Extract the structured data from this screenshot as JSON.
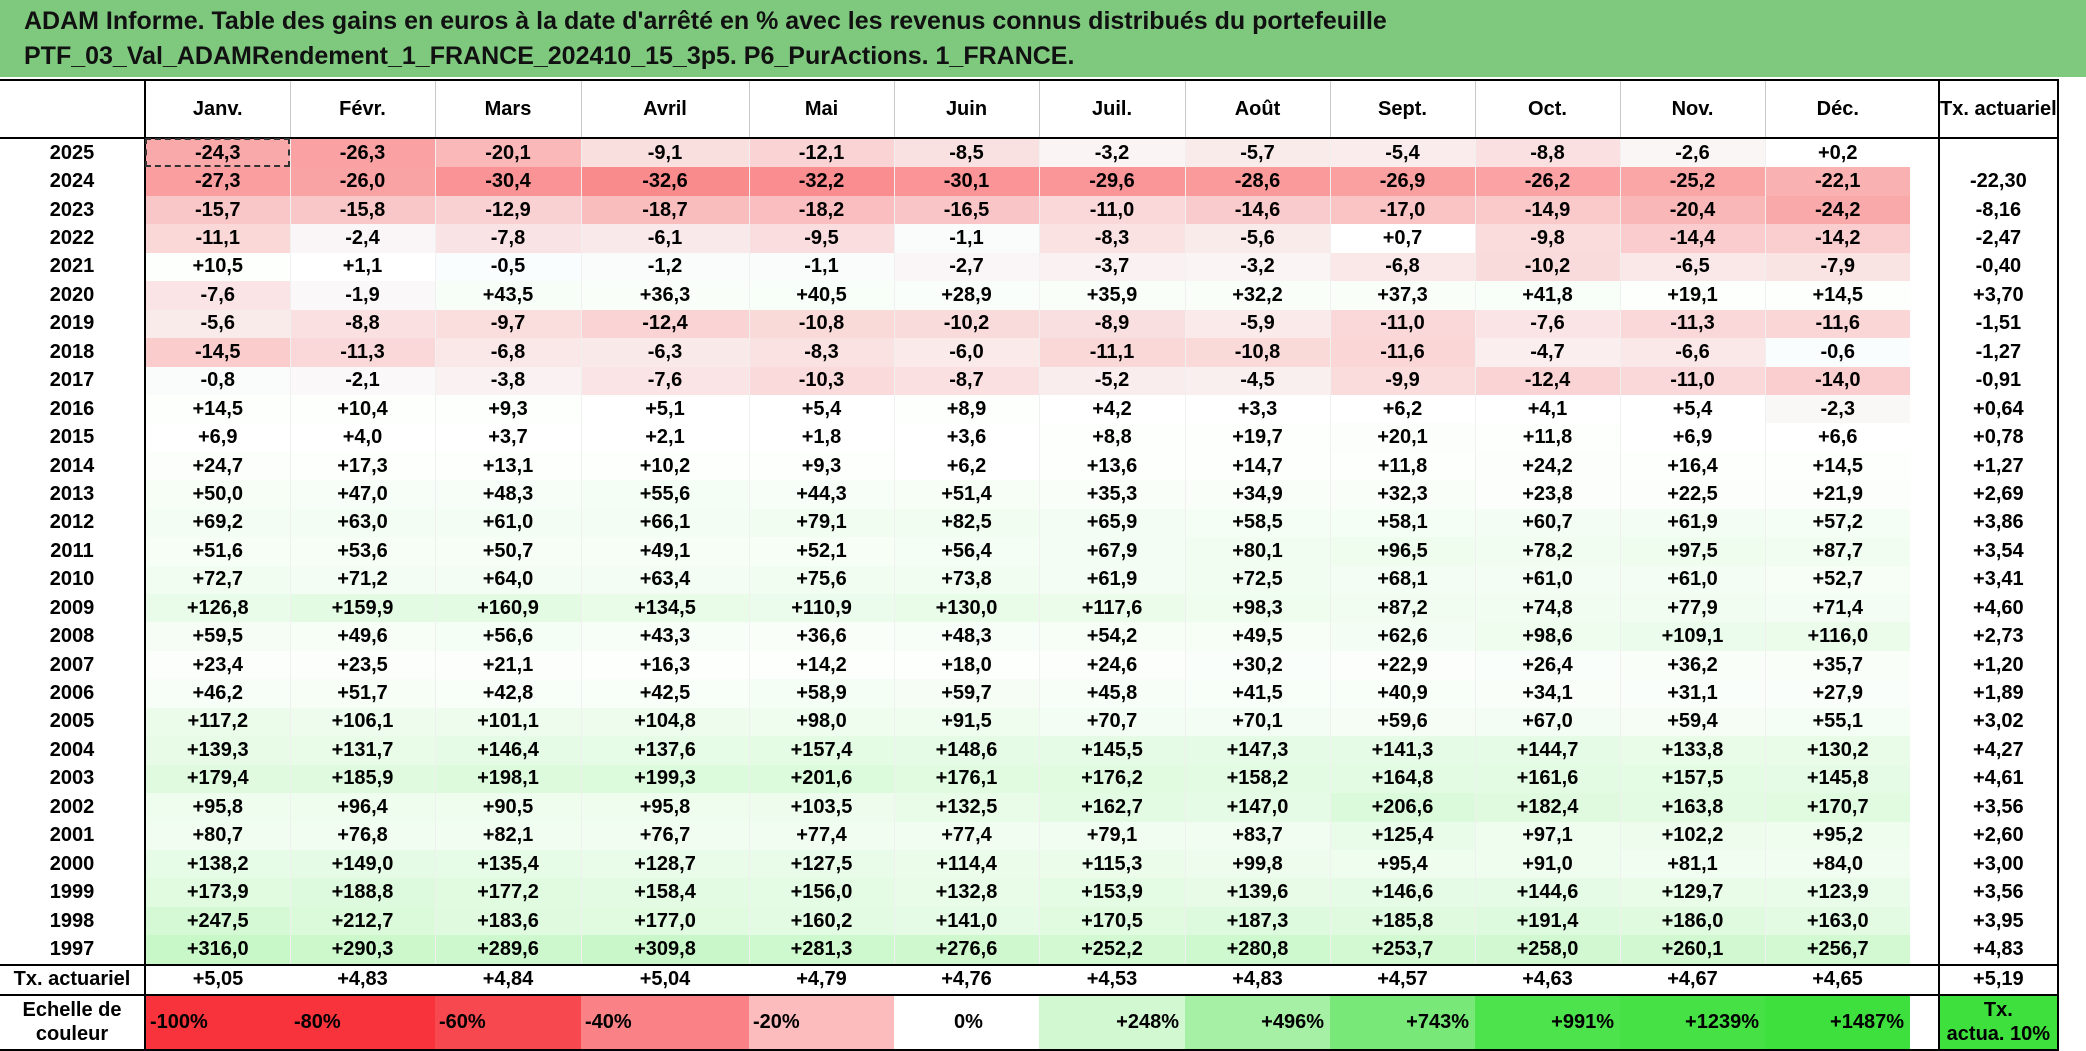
{
  "title": {
    "line1": "ADAM Informe. Table des gains en euros à la date d'arrêté en % avec les revenus connus distribués du portefeuille",
    "line2": "PTF_03_Val_ADAMRendement_1_FRANCE_202410_15_3p5. P6_PurActions. 1_FRANCE."
  },
  "months": [
    "Janv.",
    "Févr.",
    "Mars",
    "Avril",
    "Mai",
    "Juin",
    "Juil.",
    "Août",
    "Sept.",
    "Oct.",
    "Nov.",
    "Déc."
  ],
  "tx_header": "Tx. actuariel",
  "rows": [
    {
      "year": "2025",
      "vals": [
        "-24,3",
        "-26,3",
        "-20,1",
        "-9,1",
        "-12,1",
        "-8,5",
        "-3,2",
        "-5,7",
        "-5,4",
        "-8,8",
        "-2,6",
        "+0,2"
      ],
      "tx": ""
    },
    {
      "year": "2024",
      "vals": [
        "-27,3",
        "-26,0",
        "-30,4",
        "-32,6",
        "-32,2",
        "-30,1",
        "-29,6",
        "-28,6",
        "-26,9",
        "-26,2",
        "-25,2",
        "-22,1"
      ],
      "tx": "-22,30"
    },
    {
      "year": "2023",
      "vals": [
        "-15,7",
        "-15,8",
        "-12,9",
        "-18,7",
        "-18,2",
        "-16,5",
        "-11,0",
        "-14,6",
        "-17,0",
        "-14,9",
        "-20,4",
        "-24,2"
      ],
      "tx": "-8,16"
    },
    {
      "year": "2022",
      "vals": [
        "-11,1",
        "-2,4",
        "-7,8",
        "-6,1",
        "-9,5",
        "-1,1",
        "-8,3",
        "-5,6",
        "+0,7",
        "-9,8",
        "-14,4",
        "-14,2"
      ],
      "tx": "-2,47"
    },
    {
      "year": "2021",
      "vals": [
        "+10,5",
        "+1,1",
        "-0,5",
        "-1,2",
        "-1,1",
        "-2,7",
        "-3,7",
        "-3,2",
        "-6,8",
        "-10,2",
        "-6,5",
        "-7,9"
      ],
      "tx": "-0,40"
    },
    {
      "year": "2020",
      "vals": [
        "-7,6",
        "-1,9",
        "+43,5",
        "+36,3",
        "+40,5",
        "+28,9",
        "+35,9",
        "+32,2",
        "+37,3",
        "+41,8",
        "+19,1",
        "+14,5"
      ],
      "tx": "+3,70"
    },
    {
      "year": "2019",
      "vals": [
        "-5,6",
        "-8,8",
        "-9,7",
        "-12,4",
        "-10,8",
        "-10,2",
        "-8,9",
        "-5,9",
        "-11,0",
        "-7,6",
        "-11,3",
        "-11,6"
      ],
      "tx": "-1,51"
    },
    {
      "year": "2018",
      "vals": [
        "-14,5",
        "-11,3",
        "-6,8",
        "-6,3",
        "-8,3",
        "-6,0",
        "-11,1",
        "-10,8",
        "-11,6",
        "-4,7",
        "-6,6",
        "-0,6"
      ],
      "tx": "-1,27"
    },
    {
      "year": "2017",
      "vals": [
        "-0,8",
        "-2,1",
        "-3,8",
        "-7,6",
        "-10,3",
        "-8,7",
        "-5,2",
        "-4,5",
        "-9,9",
        "-12,4",
        "-11,0",
        "-14,0"
      ],
      "tx": "-0,91"
    },
    {
      "year": "2016",
      "vals": [
        "+14,5",
        "+10,4",
        "+9,3",
        "+5,1",
        "+5,4",
        "+8,9",
        "+4,2",
        "+3,3",
        "+6,2",
        "+4,1",
        "+5,4",
        "-2,3"
      ],
      "tx": "+0,64"
    },
    {
      "year": "2015",
      "vals": [
        "+6,9",
        "+4,0",
        "+3,7",
        "+2,1",
        "+1,8",
        "+3,6",
        "+8,8",
        "+19,7",
        "+20,1",
        "+11,8",
        "+6,9",
        "+6,6"
      ],
      "tx": "+0,78"
    },
    {
      "year": "2014",
      "vals": [
        "+24,7",
        "+17,3",
        "+13,1",
        "+10,2",
        "+9,3",
        "+6,2",
        "+13,6",
        "+14,7",
        "+11,8",
        "+24,2",
        "+16,4",
        "+14,5"
      ],
      "tx": "+1,27"
    },
    {
      "year": "2013",
      "vals": [
        "+50,0",
        "+47,0",
        "+48,3",
        "+55,6",
        "+44,3",
        "+51,4",
        "+35,3",
        "+34,9",
        "+32,3",
        "+23,8",
        "+22,5",
        "+21,9"
      ],
      "tx": "+2,69"
    },
    {
      "year": "2012",
      "vals": [
        "+69,2",
        "+63,0",
        "+61,0",
        "+66,1",
        "+79,1",
        "+82,5",
        "+65,9",
        "+58,5",
        "+58,1",
        "+60,7",
        "+61,9",
        "+57,2"
      ],
      "tx": "+3,86"
    },
    {
      "year": "2011",
      "vals": [
        "+51,6",
        "+53,6",
        "+50,7",
        "+49,1",
        "+52,1",
        "+56,4",
        "+67,9",
        "+80,1",
        "+96,5",
        "+78,2",
        "+97,5",
        "+87,7"
      ],
      "tx": "+3,54"
    },
    {
      "year": "2010",
      "vals": [
        "+72,7",
        "+71,2",
        "+64,0",
        "+63,4",
        "+75,6",
        "+73,8",
        "+61,9",
        "+72,5",
        "+68,1",
        "+61,0",
        "+61,0",
        "+52,7"
      ],
      "tx": "+3,41"
    },
    {
      "year": "2009",
      "vals": [
        "+126,8",
        "+159,9",
        "+160,9",
        "+134,5",
        "+110,9",
        "+130,0",
        "+117,6",
        "+98,3",
        "+87,2",
        "+74,8",
        "+77,9",
        "+71,4"
      ],
      "tx": "+4,60"
    },
    {
      "year": "2008",
      "vals": [
        "+59,5",
        "+49,6",
        "+56,6",
        "+43,3",
        "+36,6",
        "+48,3",
        "+54,2",
        "+49,5",
        "+62,6",
        "+98,6",
        "+109,1",
        "+116,0"
      ],
      "tx": "+2,73"
    },
    {
      "year": "2007",
      "vals": [
        "+23,4",
        "+23,5",
        "+21,1",
        "+16,3",
        "+14,2",
        "+18,0",
        "+24,6",
        "+30,2",
        "+22,9",
        "+26,4",
        "+36,2",
        "+35,7"
      ],
      "tx": "+1,20"
    },
    {
      "year": "2006",
      "vals": [
        "+46,2",
        "+51,7",
        "+42,8",
        "+42,5",
        "+58,9",
        "+59,7",
        "+45,8",
        "+41,5",
        "+40,9",
        "+34,1",
        "+31,1",
        "+27,9"
      ],
      "tx": "+1,89"
    },
    {
      "year": "2005",
      "vals": [
        "+117,2",
        "+106,1",
        "+101,1",
        "+104,8",
        "+98,0",
        "+91,5",
        "+70,7",
        "+70,1",
        "+59,6",
        "+67,0",
        "+59,4",
        "+55,1"
      ],
      "tx": "+3,02"
    },
    {
      "year": "2004",
      "vals": [
        "+139,3",
        "+131,7",
        "+146,4",
        "+137,6",
        "+157,4",
        "+148,6",
        "+145,5",
        "+147,3",
        "+141,3",
        "+144,7",
        "+133,8",
        "+130,2"
      ],
      "tx": "+4,27"
    },
    {
      "year": "2003",
      "vals": [
        "+179,4",
        "+185,9",
        "+198,1",
        "+199,3",
        "+201,6",
        "+176,1",
        "+176,2",
        "+158,2",
        "+164,8",
        "+161,6",
        "+157,5",
        "+145,8"
      ],
      "tx": "+4,61"
    },
    {
      "year": "2002",
      "vals": [
        "+95,8",
        "+96,4",
        "+90,5",
        "+95,8",
        "+103,5",
        "+132,5",
        "+162,7",
        "+147,0",
        "+206,6",
        "+182,4",
        "+163,8",
        "+170,7"
      ],
      "tx": "+3,56"
    },
    {
      "year": "2001",
      "vals": [
        "+80,7",
        "+76,8",
        "+82,1",
        "+76,7",
        "+77,4",
        "+77,4",
        "+79,1",
        "+83,7",
        "+125,4",
        "+97,1",
        "+102,2",
        "+95,2"
      ],
      "tx": "+2,60"
    },
    {
      "year": "2000",
      "vals": [
        "+138,2",
        "+149,0",
        "+135,4",
        "+128,7",
        "+127,5",
        "+114,4",
        "+115,3",
        "+99,8",
        "+95,4",
        "+91,0",
        "+81,1",
        "+84,0"
      ],
      "tx": "+3,00"
    },
    {
      "year": "1999",
      "vals": [
        "+173,9",
        "+188,8",
        "+177,2",
        "+158,4",
        "+156,0",
        "+132,8",
        "+153,9",
        "+139,6",
        "+146,6",
        "+144,6",
        "+129,7",
        "+123,9"
      ],
      "tx": "+3,56"
    },
    {
      "year": "1998",
      "vals": [
        "+247,5",
        "+212,7",
        "+183,6",
        "+177,0",
        "+160,2",
        "+141,0",
        "+170,5",
        "+187,3",
        "+185,8",
        "+191,4",
        "+186,0",
        "+163,0"
      ],
      "tx": "+3,95"
    },
    {
      "year": "1997",
      "vals": [
        "+316,0",
        "+290,3",
        "+289,6",
        "+309,8",
        "+281,3",
        "+276,6",
        "+252,2",
        "+280,8",
        "+253,7",
        "+258,0",
        "+260,1",
        "+256,7"
      ],
      "tx": "+4,83"
    }
  ],
  "footer": {
    "label": "Tx. actuariel",
    "vals": [
      "+5,05",
      "+4,83",
      "+4,84",
      "+5,04",
      "+4,79",
      "+4,76",
      "+4,53",
      "+4,83",
      "+4,57",
      "+4,63",
      "+4,67",
      "+4,65"
    ],
    "tx": "+5,19"
  },
  "scale": {
    "label_line1": "Echelle de",
    "label_line2": "couleur",
    "items": [
      {
        "text": "-100%",
        "color": "#f8333c",
        "kind": "neg"
      },
      {
        "text": "-80%",
        "color": "#f8333c",
        "kind": "neg"
      },
      {
        "text": "-60%",
        "color": "#f8484f",
        "kind": "neg"
      },
      {
        "text": "-40%",
        "color": "#fa8286",
        "kind": "neg"
      },
      {
        "text": "-20%",
        "color": "#fcbcbe",
        "kind": "neg"
      },
      {
        "text": "0%",
        "color": "#ffffff",
        "kind": "zero"
      },
      {
        "text": "+248%",
        "color": "#d2f8d2",
        "kind": "pos"
      },
      {
        "text": "+496%",
        "color": "#a5f0a5",
        "kind": "pos"
      },
      {
        "text": "+743%",
        "color": "#78e978",
        "kind": "pos"
      },
      {
        "text": "+991%",
        "color": "#4de34d",
        "kind": "pos"
      },
      {
        "text": "+1239%",
        "color": "#45e145",
        "kind": "pos"
      },
      {
        "text": "+1487%",
        "color": "#3ee03e",
        "kind": "pos"
      }
    ],
    "tx_line1": "Tx.",
    "tx_line2": "actua. 10%",
    "tx_color": "#3ee03e"
  },
  "colors": {
    "header_bg": "#7fc97f",
    "neg_max": "#fa8a8c",
    "pos_max": "#c8f7c8"
  }
}
